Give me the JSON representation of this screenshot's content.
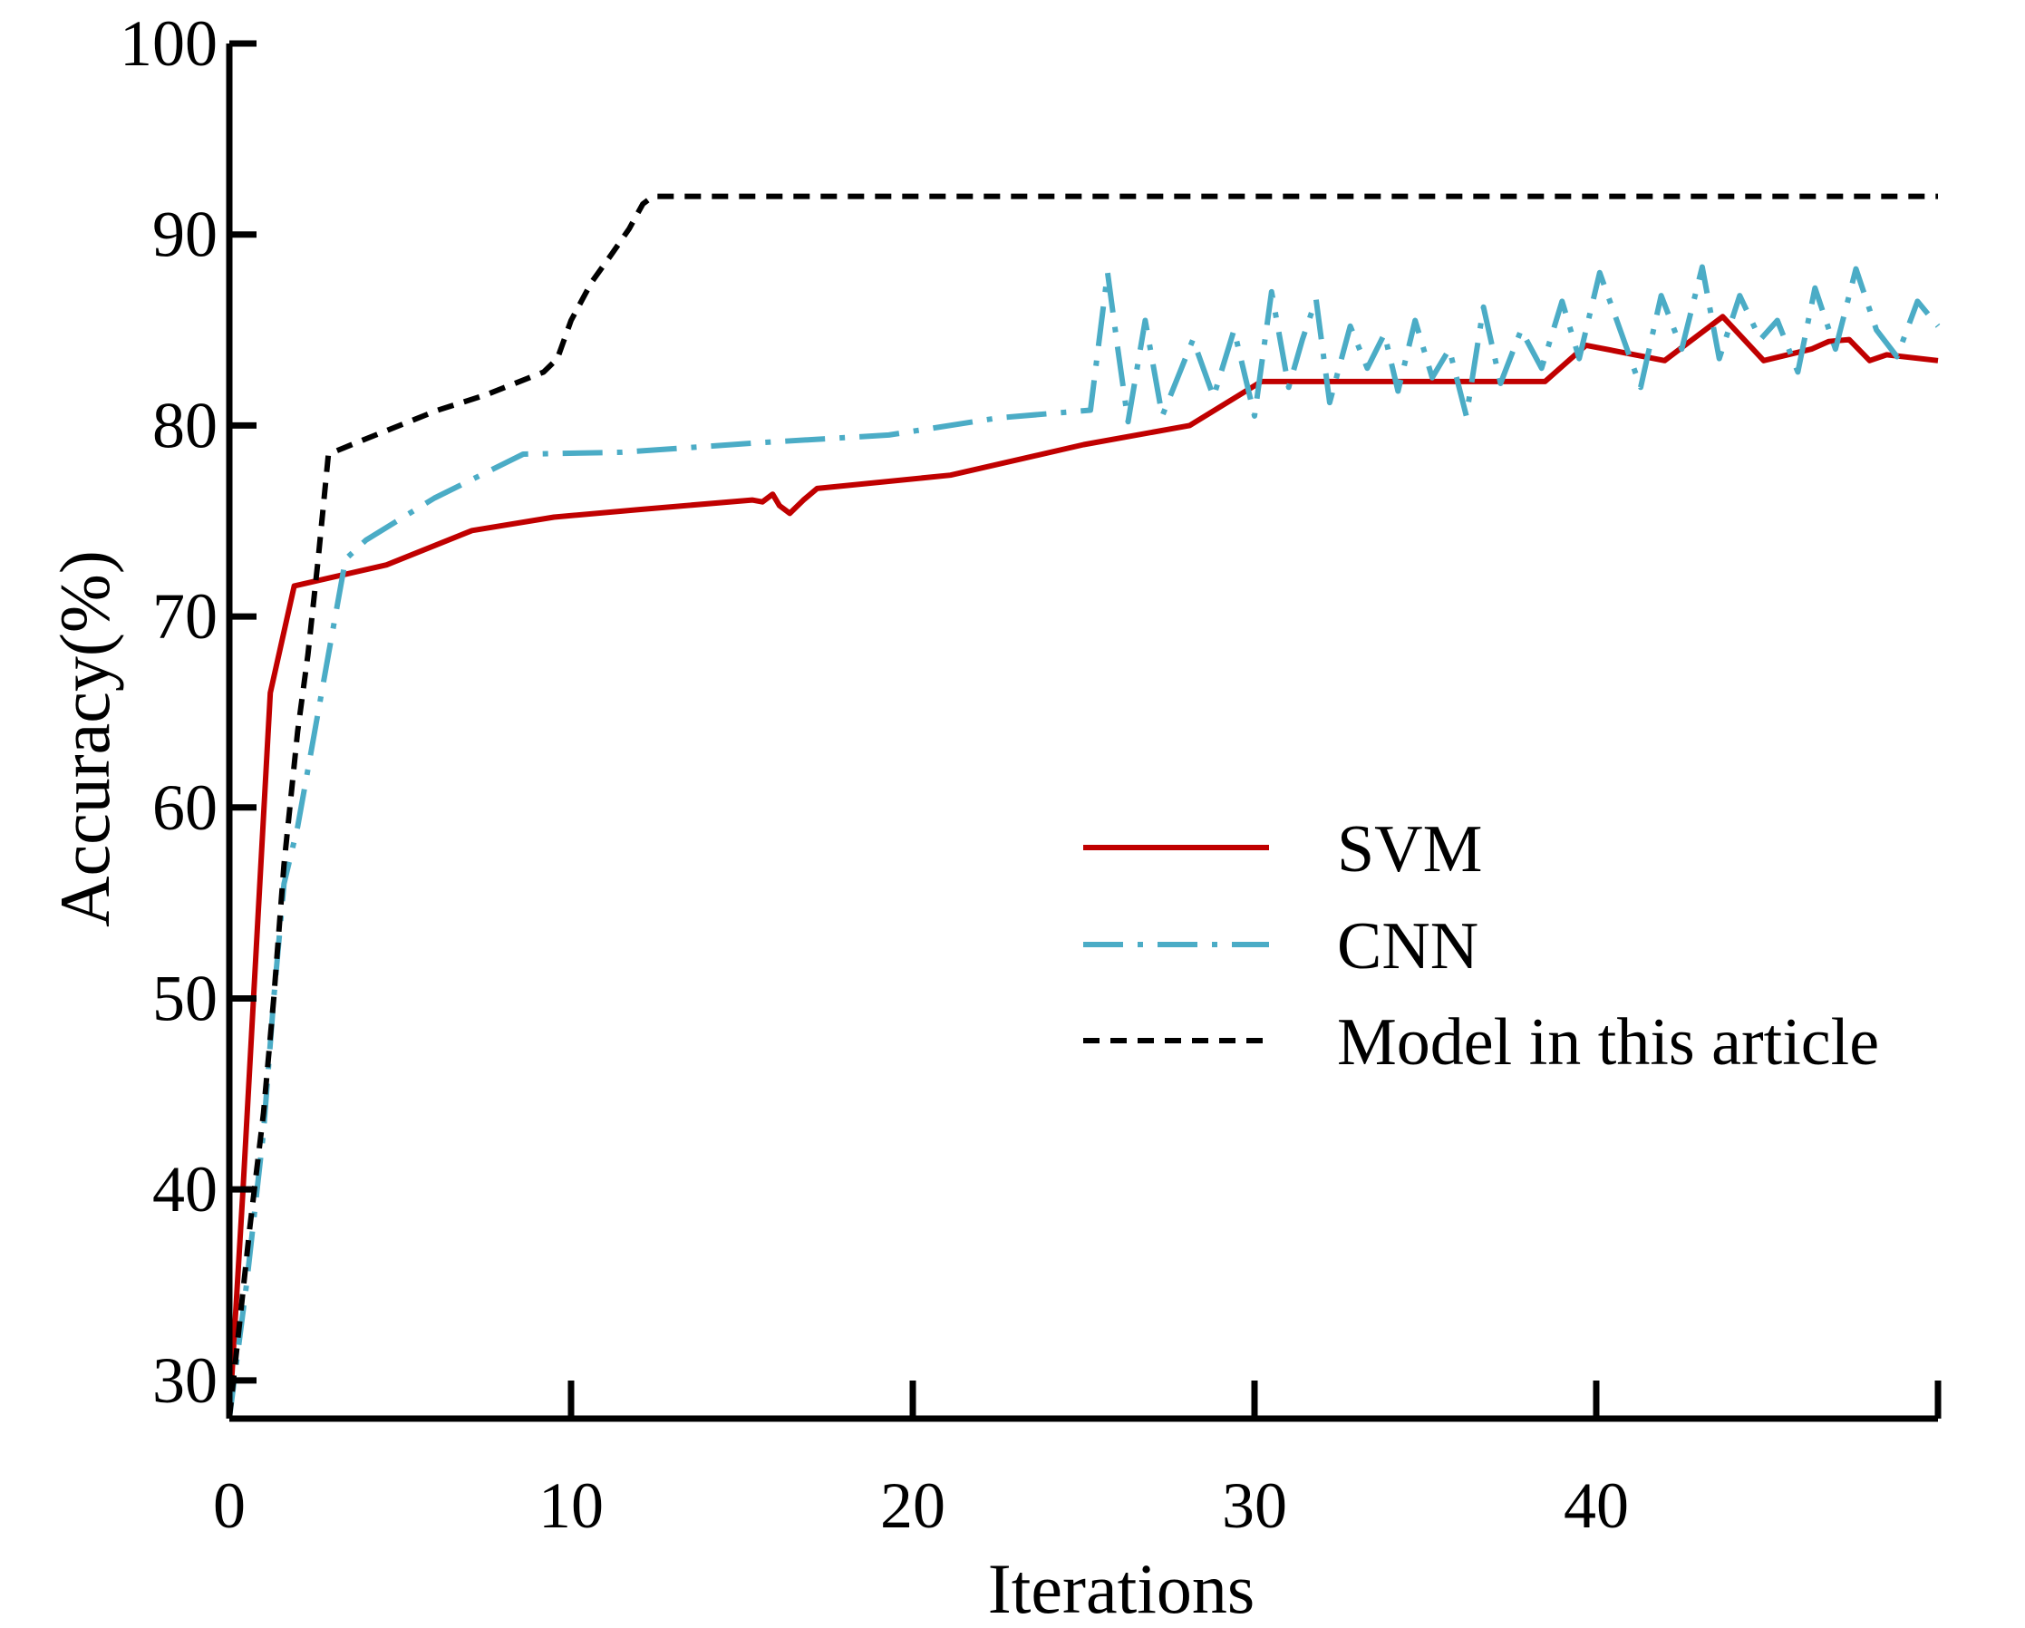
{
  "chart_data": {
    "type": "line",
    "title": "",
    "xlabel": "Iterations",
    "ylabel": "Accuracy(%)",
    "xlim": [
      0,
      50
    ],
    "ylim": [
      28,
      100
    ],
    "xticks": [
      0,
      10,
      20,
      30,
      40
    ],
    "xtick_labels": [
      "0",
      "10",
      "20",
      "30",
      "40"
    ],
    "yticks": [
      30,
      40,
      50,
      60,
      70,
      80,
      90,
      100
    ],
    "ytick_labels": [
      "30",
      "40",
      "50",
      "60",
      "70",
      "80",
      "90",
      "100"
    ],
    "grid": false,
    "legend_position": "center-right",
    "series": [
      {
        "name": "SVM",
        "color": "#c00000",
        "style": "solid",
        "x": [
          0,
          0.4,
          1.2,
          1.9,
          4.6,
          7.1,
          9.5,
          12,
          15.3,
          15.6,
          15.9,
          16.1,
          16.4,
          16.8,
          17.2,
          21.1,
          25,
          28.1,
          30.2,
          32,
          35,
          38.5,
          39.7,
          42,
          43.7,
          44.9,
          46.3,
          46.8,
          47.4,
          48,
          48.5,
          50
        ],
        "values": [
          28,
          40,
          66,
          71.6,
          72.7,
          74.5,
          75.2,
          75.6,
          76.1,
          76,
          76.4,
          75.8,
          75.4,
          76.1,
          76.7,
          77.4,
          79,
          80,
          82.3,
          82.3,
          82.3,
          82.3,
          84.2,
          83.4,
          85.7,
          83.4,
          84,
          84.4,
          84.5,
          83.4,
          83.7,
          83.4
        ]
      },
      {
        "name": "CNN",
        "color": "#4bacc6",
        "style": "dashdot",
        "x": [
          0,
          0.5,
          1,
          1.3,
          1.6,
          2,
          2.4,
          2.9,
          3.4,
          4,
          6,
          8.6,
          11.5,
          15.5,
          19.3,
          22.5,
          25.2,
          25.7,
          26,
          26.3,
          26.8,
          27.3,
          28.2,
          28.8,
          29.4,
          30,
          30.5,
          31,
          31.4,
          31.8,
          32.2,
          32.8,
          33.3,
          33.8,
          34.2,
          34.7,
          35.2,
          35.7,
          36.2,
          36.7,
          37.2,
          37.8,
          38.4,
          39,
          39.5,
          40.1,
          40.7,
          41.3,
          41.9,
          42.5,
          43.1,
          43.6,
          44.2,
          44.8,
          45.3,
          45.9,
          46.4,
          47,
          47.6,
          48.2,
          48.8,
          49.4,
          50
        ],
        "values": [
          28,
          35,
          43,
          50,
          56,
          59,
          63,
          68,
          73,
          74,
          76.2,
          78.5,
          78.6,
          79.1,
          79.5,
          80.4,
          80.8,
          88,
          84,
          80.2,
          85.5,
          80.5,
          84.5,
          81.5,
          85,
          80.5,
          87,
          82,
          84.5,
          86.6,
          81.2,
          85.2,
          83,
          84.8,
          81.8,
          85.5,
          82.5,
          84,
          80.5,
          86.2,
          82.2,
          85,
          83,
          86.5,
          83.5,
          88,
          85,
          82,
          86.8,
          84,
          88.3,
          83.5,
          86.8,
          84.5,
          85.5,
          82.8,
          87.2,
          84,
          88.2,
          85,
          83.6,
          86.5,
          85.2
        ]
      },
      {
        "name": "Model in this article",
        "color": "#000000",
        "style": "dashed",
        "x": [
          0,
          0.6,
          1,
          1.3,
          1.6,
          2,
          2.3,
          2.6,
          2.9,
          4,
          6.1,
          7.5,
          9.2,
          9.6,
          10,
          10.6,
          11.2,
          11.7,
          12.1,
          12.4,
          13.5,
          20,
          30,
          40,
          50
        ],
        "values": [
          28,
          38,
          44,
          50,
          57,
          64,
          68,
          73,
          78.5,
          79.3,
          80.8,
          81.6,
          82.8,
          83.5,
          85.5,
          87.5,
          89,
          90.3,
          91.6,
          92,
          92,
          92,
          92,
          92,
          92
        ]
      }
    ]
  }
}
